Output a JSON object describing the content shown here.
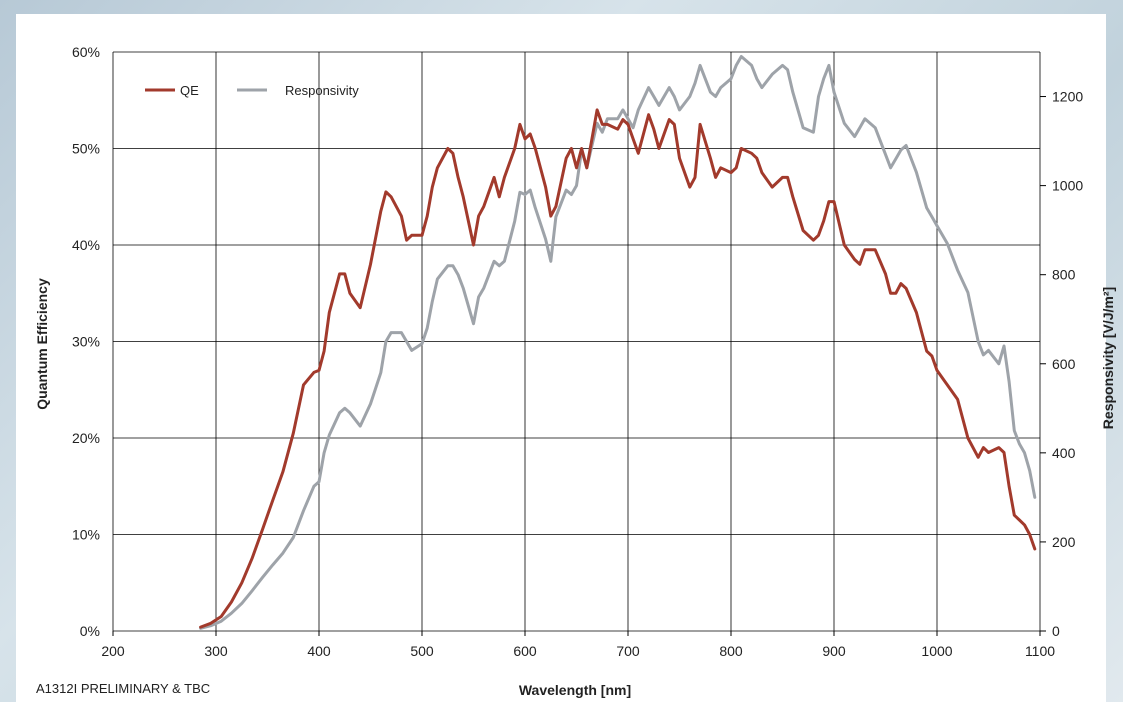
{
  "footnote": "A1312I PRELIMINARY & TBC",
  "colors": {
    "qe": "#a23a2c",
    "responsivity": "#9ea3a9",
    "grid": "#000000",
    "background_panel": "#ffffff"
  },
  "chart_data": {
    "type": "line",
    "title": "",
    "xlabel": "Wavelength [nm]",
    "ylabel": "Quantum Efficiency",
    "y2label": "Responsivity [V/J/m²]",
    "xlim": [
      200,
      1100
    ],
    "ylim": [
      0,
      60
    ],
    "y2lim": [
      0,
      1300
    ],
    "x_ticks": [
      "200",
      "300",
      "400",
      "500",
      "600",
      "700",
      "800",
      "900",
      "1000",
      "1100"
    ],
    "y_ticks": [
      "0%",
      "10%",
      "20%",
      "30%",
      "40%",
      "50%",
      "60%"
    ],
    "y2_ticks": [
      "0",
      "200",
      "400",
      "600",
      "800",
      "1000",
      "1200"
    ],
    "grid": true,
    "legend": {
      "position": "top-left",
      "entries": [
        "QE",
        "Responsivity"
      ]
    },
    "series": [
      {
        "name": "QE",
        "axis": "left",
        "unit": "%",
        "x": [
          285,
          295,
          305,
          315,
          325,
          335,
          345,
          355,
          365,
          375,
          385,
          395,
          400,
          405,
          410,
          420,
          425,
          430,
          440,
          450,
          460,
          465,
          470,
          480,
          485,
          490,
          500,
          505,
          510,
          515,
          525,
          530,
          535,
          540,
          550,
          555,
          560,
          570,
          575,
          580,
          590,
          595,
          600,
          605,
          610,
          620,
          625,
          630,
          640,
          645,
          650,
          655,
          660,
          670,
          675,
          680,
          690,
          695,
          700,
          705,
          710,
          720,
          725,
          730,
          740,
          745,
          750,
          760,
          765,
          770,
          780,
          785,
          790,
          800,
          805,
          810,
          820,
          825,
          830,
          840,
          850,
          855,
          860,
          870,
          880,
          885,
          890,
          895,
          900,
          910,
          920,
          925,
          930,
          940,
          950,
          955,
          960,
          965,
          970,
          980,
          990,
          995,
          1000,
          1010,
          1020,
          1030,
          1040,
          1045,
          1050,
          1060,
          1065,
          1070,
          1075,
          1080,
          1085,
          1090,
          1095
        ],
        "y": [
          0.4,
          0.8,
          1.5,
          3,
          5,
          7.5,
          10.5,
          13.5,
          16.5,
          20.5,
          25.5,
          26.8,
          27,
          29,
          33,
          37,
          37,
          35,
          33.5,
          38,
          43.5,
          45.5,
          45,
          43,
          40.5,
          41,
          41,
          43,
          46,
          48,
          50,
          49.5,
          47,
          45,
          40,
          43,
          44,
          47,
          45,
          47,
          50,
          52.5,
          51,
          51.5,
          50,
          46,
          43,
          44,
          49,
          50,
          48,
          50,
          48,
          54,
          52.5,
          52.5,
          52,
          53,
          52.5,
          51,
          49.5,
          53.5,
          52,
          50,
          53,
          52.5,
          49,
          46,
          47,
          52.5,
          49,
          47,
          48,
          47.5,
          48,
          50,
          49.5,
          49,
          47.5,
          46,
          47,
          47,
          45,
          41.5,
          40.5,
          41,
          42.5,
          44.5,
          44.5,
          40,
          38.5,
          38,
          39.5,
          39.5,
          37,
          35,
          35,
          36,
          35.5,
          33,
          29,
          28.5,
          27,
          25.5,
          24,
          20,
          18,
          19,
          18.5,
          19,
          18.5,
          15,
          12,
          11.5,
          11,
          10,
          8.5
        ]
      },
      {
        "name": "Responsivity",
        "axis": "right",
        "unit": "V/J/m²",
        "x": [
          285,
          295,
          305,
          315,
          325,
          335,
          345,
          355,
          365,
          375,
          385,
          395,
          400,
          405,
          410,
          420,
          425,
          430,
          440,
          450,
          460,
          465,
          470,
          480,
          485,
          490,
          500,
          505,
          510,
          515,
          525,
          530,
          535,
          540,
          550,
          555,
          560,
          570,
          575,
          580,
          590,
          595,
          600,
          605,
          610,
          620,
          625,
          630,
          640,
          645,
          650,
          655,
          660,
          670,
          675,
          680,
          690,
          695,
          700,
          705,
          710,
          720,
          725,
          730,
          740,
          745,
          750,
          760,
          765,
          770,
          780,
          785,
          790,
          800,
          805,
          810,
          820,
          825,
          830,
          840,
          850,
          855,
          860,
          870,
          880,
          885,
          890,
          895,
          900,
          910,
          920,
          925,
          930,
          940,
          950,
          955,
          960,
          965,
          970,
          980,
          990,
          995,
          1000,
          1010,
          1020,
          1030,
          1040,
          1045,
          1050,
          1060,
          1065,
          1070,
          1075,
          1080,
          1085,
          1090,
          1095
        ],
        "y": [
          6,
          12,
          22,
          40,
          62,
          90,
          120,
          148,
          175,
          210,
          270,
          325,
          335,
          400,
          440,
          490,
          500,
          490,
          460,
          510,
          580,
          650,
          670,
          670,
          650,
          630,
          645,
          680,
          740,
          790,
          820,
          820,
          800,
          770,
          690,
          750,
          770,
          830,
          820,
          830,
          920,
          985,
          980,
          990,
          950,
          880,
          830,
          930,
          990,
          980,
          1000,
          1080,
          1040,
          1140,
          1120,
          1150,
          1150,
          1170,
          1150,
          1130,
          1170,
          1220,
          1200,
          1180,
          1220,
          1200,
          1170,
          1200,
          1230,
          1270,
          1210,
          1200,
          1220,
          1240,
          1270,
          1290,
          1270,
          1240,
          1220,
          1250,
          1270,
          1260,
          1210,
          1130,
          1120,
          1200,
          1240,
          1270,
          1210,
          1140,
          1110,
          1130,
          1150,
          1130,
          1070,
          1040,
          1060,
          1080,
          1090,
          1030,
          950,
          930,
          910,
          870,
          810,
          760,
          650,
          620,
          630,
          600,
          640,
          560,
          450,
          420,
          400,
          360,
          300
        ]
      }
    ]
  }
}
